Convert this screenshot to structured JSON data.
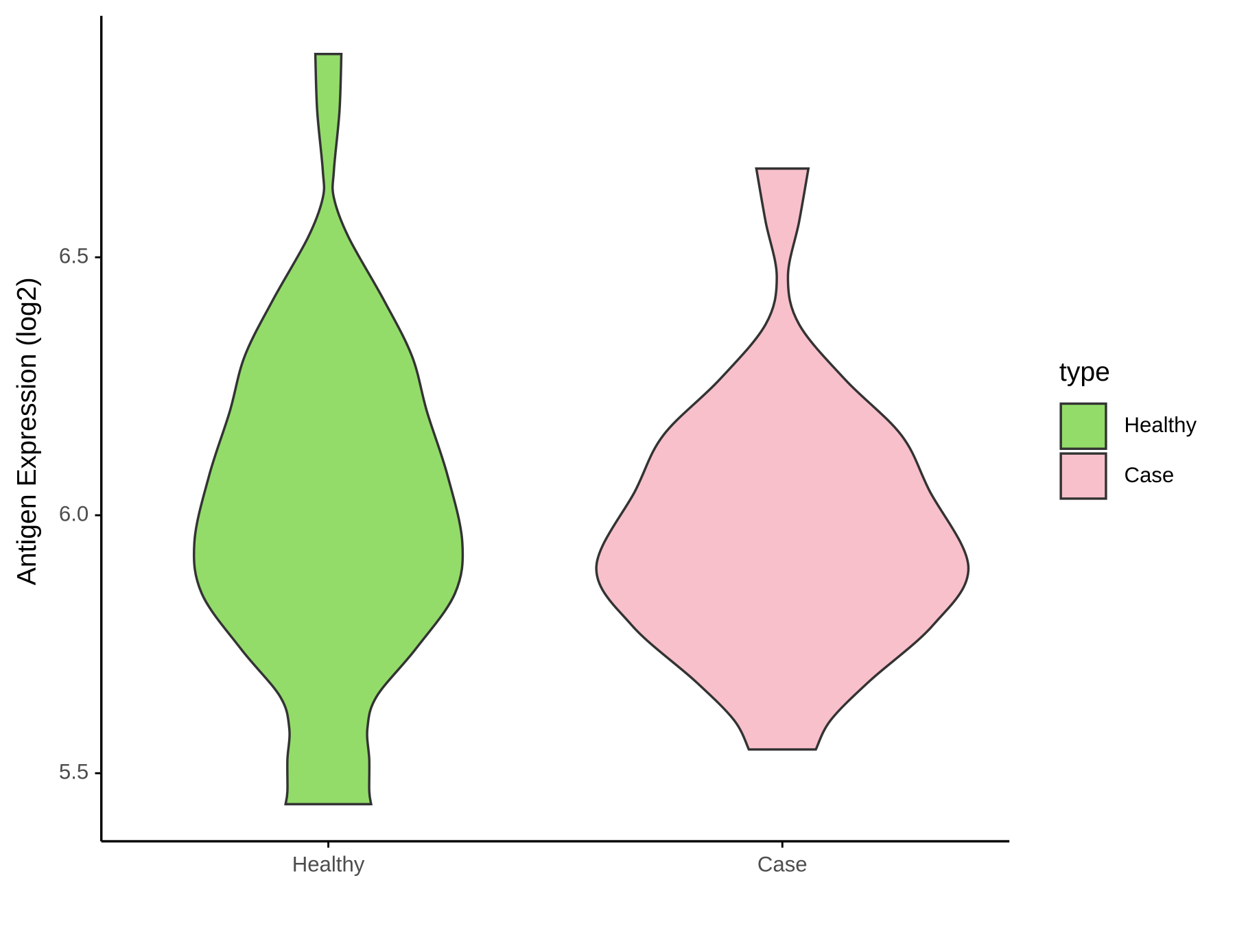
{
  "chart_data": {
    "type": "violin",
    "y_label": "Antigen Expression (log2)",
    "categories": [
      "Healthy",
      "Case"
    ],
    "ylim": [
      5.368,
      6.968
    ],
    "yticks": [
      5.5,
      {
        "value": 6,
        "label": "6.0"
      },
      6.5
    ],
    "legend_title": "type",
    "legend_position": "right",
    "outline_color": "#333333",
    "series": [
      {
        "name": "Healthy",
        "color": "#93dc6a",
        "y": [
          6.894,
          6.784,
          6.669,
          6.615,
          6.538,
          6.416,
          6.308,
          6.201,
          6.078,
          5.948,
          5.848,
          5.741,
          5.649,
          5.587,
          5.526,
          5.465,
          5.44
        ],
        "density": [
          0.07,
          0.06,
          0.03,
          0.03,
          0.11,
          0.3,
          0.45,
          0.53,
          0.64,
          0.72,
          0.68,
          0.47,
          0.26,
          0.21,
          0.22,
          0.22,
          0.23
        ]
      },
      {
        "name": "Case",
        "color": "#f8c0cb",
        "y": [
          6.672,
          6.569,
          6.462,
          6.37,
          6.262,
          6.155,
          6.048,
          5.899,
          5.787,
          5.679,
          5.603,
          5.546
        ],
        "density": [
          0.14,
          0.09,
          0.03,
          0.09,
          0.34,
          0.64,
          0.79,
          1.0,
          0.81,
          0.47,
          0.26,
          0.18
        ]
      }
    ]
  }
}
